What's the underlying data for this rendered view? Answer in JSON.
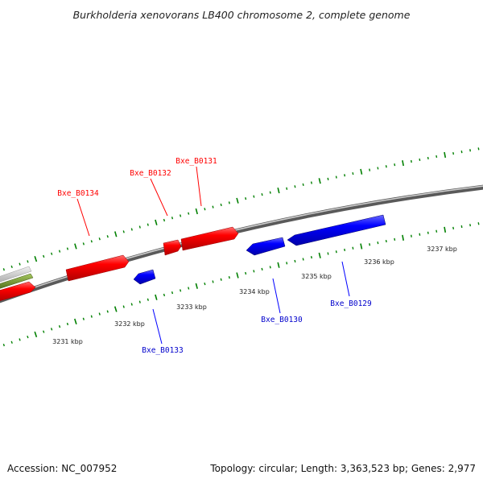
{
  "header": {
    "title": "Burkholderia xenovorans LB400 chromosome 2, complete genome"
  },
  "footer": {
    "accession": "Accession: NC_007952",
    "summary": "Topology: circular; Length: 3,363,523 bp; Genes: 2,977"
  },
  "colors": {
    "forward_gene": "#ff0000",
    "reverse_gene": "#0000ff",
    "tick_green": "#008000",
    "backbone": "#888888",
    "gray_feature": "#c8c8c8",
    "olive_feature": "#6b8e23"
  },
  "ruler_labels": [
    "3231 kbp",
    "3232 kbp",
    "3233 kbp",
    "3234 kbp",
    "3235 kbp",
    "3236 kbp",
    "3237 kbp"
  ],
  "genes": {
    "forward": [
      "Bxe_B0134",
      "Bxe_B0132",
      "Bxe_B0131"
    ],
    "reverse": [
      "Bxe_B0133",
      "Bxe_B0130",
      "Bxe_B0129"
    ]
  }
}
